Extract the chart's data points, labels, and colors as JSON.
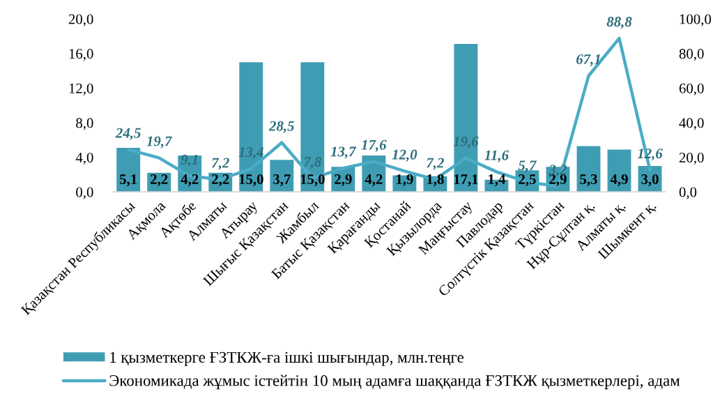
{
  "chart_data": {
    "type": "bar",
    "categories": [
      "Қазақстан Республикасы",
      "Ақмола",
      "Ақтөбе",
      "Алматы",
      "Атырау",
      "Шығыс Қазақстан",
      "Жамбыл",
      "Батыс Қазақстан",
      "Қарағанды",
      "Қостанай",
      "Қызылорда",
      "Маңғыстау",
      "Павлодар",
      "Солтүстік Қазақстан",
      "Түркістан",
      "Нұр-Сұлтан қ.",
      "Алматы қ.",
      "Шымкент қ."
    ],
    "series": [
      {
        "name": "1 қызметкерге ҒЗТКЖ-ға ішкі шығындар, млн.теңге",
        "color": "#3f9db3",
        "values": [
          5.1,
          2.2,
          4.2,
          2.2,
          15.0,
          3.7,
          15.0,
          2.9,
          4.2,
          1.9,
          1.8,
          17.1,
          1.4,
          2.5,
          2.9,
          5.3,
          4.9,
          3.0
        ],
        "value_labels": [
          "5,1",
          "2,2",
          "4,2",
          "2,2",
          "15,0",
          "3,7",
          "15,0",
          "2,9",
          "4,2",
          "1,9",
          "1,8",
          "17,1",
          "1,4",
          "2,5",
          "2,9",
          "5,3",
          "4,9",
          "3,0"
        ]
      },
      {
        "name": "Экономикада жұмыс істейтін 10 мың адамға шаққанда ҒЗТКЖ қызметкерлері, адам",
        "type": "line",
        "axis": "y2",
        "color": "#4bacc6",
        "values": [
          24.5,
          19.7,
          9.1,
          7.2,
          13.4,
          28.5,
          7.8,
          13.7,
          17.6,
          12.0,
          7.2,
          19.6,
          11.6,
          5.7,
          3.2,
          67.1,
          88.8,
          12.6
        ],
        "value_labels": [
          "24,5",
          "19,7",
          "9,1",
          "7,2",
          "13,4",
          "28,5",
          "7,8",
          "13,7",
          "17,6",
          "12,0",
          "7,2",
          "19,6",
          "11,6",
          "5,7",
          "3,2",
          "67,1",
          "88,8",
          "12,6"
        ]
      }
    ],
    "ylim": [
      0,
      20
    ],
    "yticks": [
      {
        "value": 0,
        "label": "0,0"
      },
      {
        "value": 4,
        "label": "4,0"
      },
      {
        "value": 8,
        "label": "8,0"
      },
      {
        "value": 12,
        "label": "12,0"
      },
      {
        "value": 16,
        "label": "16,0"
      },
      {
        "value": 20,
        "label": "20,0"
      }
    ],
    "y2lim": [
      0,
      100
    ],
    "y2ticks": [
      {
        "value": 0,
        "label": "0,0"
      },
      {
        "value": 20,
        "label": "20,0"
      },
      {
        "value": 40,
        "label": "40,0"
      },
      {
        "value": 60,
        "label": "60,0"
      },
      {
        "value": 80,
        "label": "80,0"
      },
      {
        "value": 100,
        "label": "100,0"
      }
    ],
    "legend": "bottom",
    "grid": false,
    "marker": "none",
    "line_style": "solid"
  }
}
